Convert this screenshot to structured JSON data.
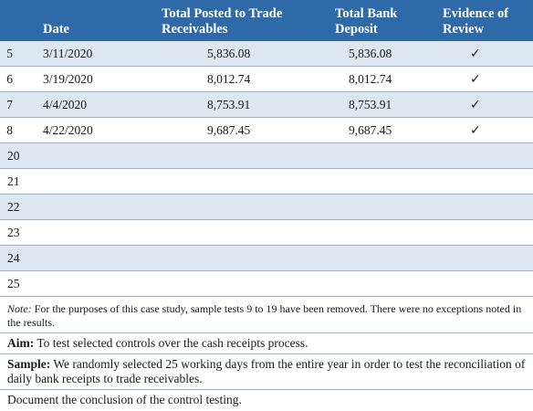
{
  "table": {
    "headers": {
      "date": "Date",
      "posted_line1": "Total Posted to Trade",
      "posted_line2": "Receivables",
      "bank_line1": "Total Bank",
      "bank_line2": "Deposit",
      "evidence_line1": "Evidence of",
      "evidence_line2": "Review"
    },
    "rows": [
      {
        "num": "5",
        "date": "3/11/2020",
        "posted": "5,836.08",
        "bank": "5,836.08",
        "check": "✓"
      },
      {
        "num": "6",
        "date": "3/19/2020",
        "posted": "8,012.74",
        "bank": "8,012.74",
        "check": "✓"
      },
      {
        "num": "7",
        "date": "4/4/2020",
        "posted": "8,753.91",
        "bank": "8,753.91",
        "check": "✓"
      },
      {
        "num": "8",
        "date": "4/22/2020",
        "posted": "9,687.45",
        "bank": "9,687.45",
        "check": "✓"
      }
    ],
    "empty_rows": [
      "20",
      "21",
      "22",
      "23",
      "24",
      "25"
    ]
  },
  "notes": {
    "note_label": "Note:",
    "note_text": " For the purposes of this case study, sample tests 9 to 19 have been removed. There were no exceptions noted in the results.",
    "aim_label": "Aim:",
    "aim_text": " To test selected controls over the cash receipts process.",
    "sample_label": "Sample:",
    "sample_text": " We randomly selected 25 working days from the entire year in order to test the reconciliation of daily bank receipts to trade receivables.",
    "conclusion": "Document the conclusion of the control testing."
  },
  "colors": {
    "header_bg": "#2f6aa8",
    "shade": "#dde7f2",
    "rule": "#9db3cc"
  }
}
